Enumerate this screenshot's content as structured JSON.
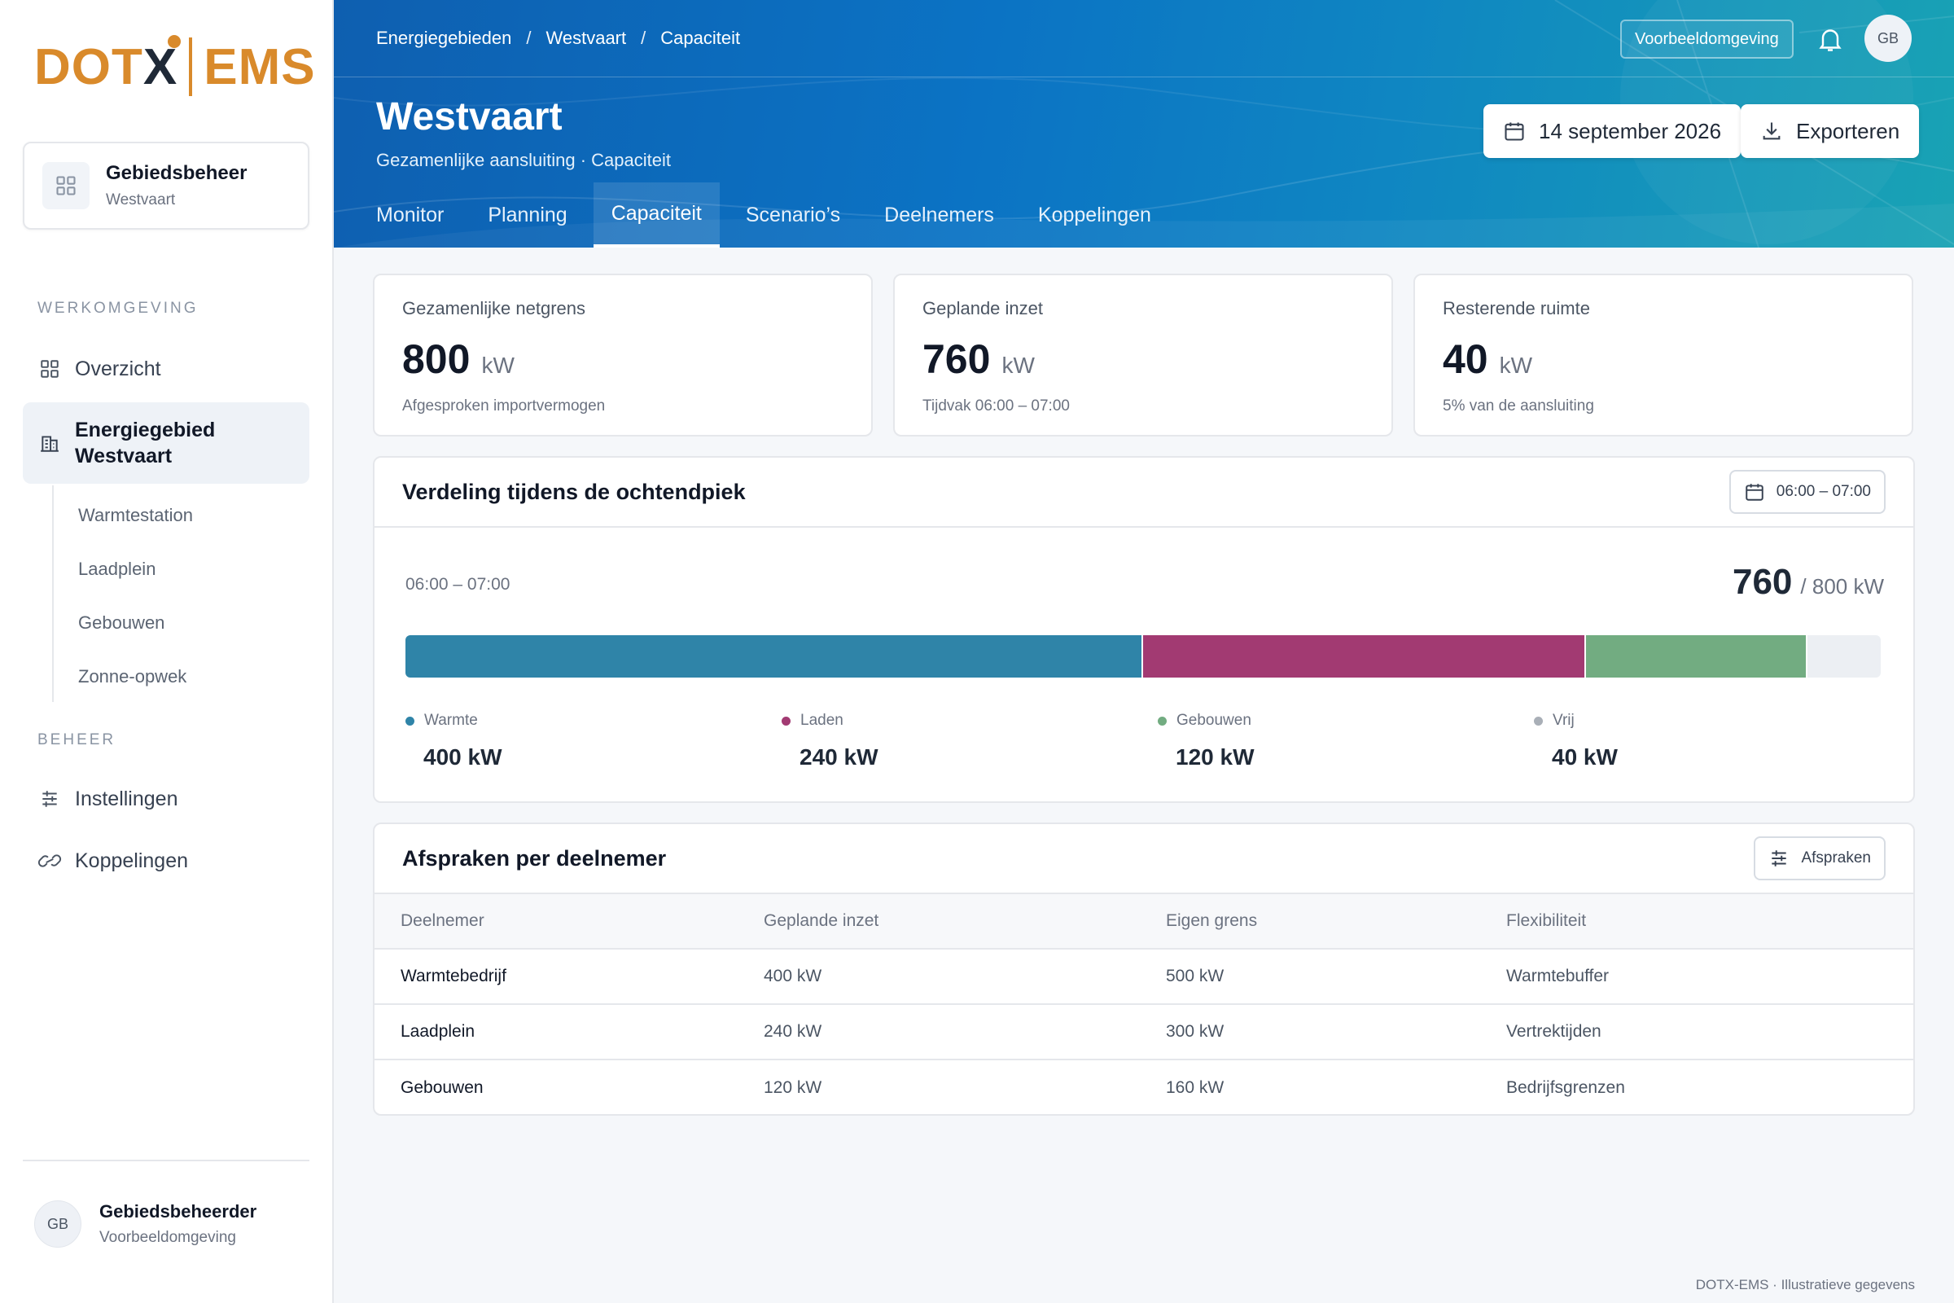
{
  "brand": {
    "left": "DOT",
    "x": "X",
    "right": "EMS"
  },
  "area": {
    "title": "Gebiedsbeheer",
    "subtitle": "Westvaart"
  },
  "sidebar": {
    "section_workspace": "WERKOMGEVING",
    "section_manage": "BEHEER",
    "overview": "Overzicht",
    "active_line1": "Energiegebied",
    "active_line2": "Westvaart",
    "sub_items": [
      "Warmtestation",
      "Laadplein",
      "Gebouwen",
      "Zonne-opwek"
    ],
    "settings": "Instellingen",
    "links": "Koppelingen"
  },
  "user": {
    "initials": "GB",
    "name": "Gebiedsbeheerder",
    "env": "Voorbeeldomgeving"
  },
  "header": {
    "breadcrumbs": [
      "Energiegebieden",
      "Westvaart",
      "Capaciteit"
    ],
    "separator": "/",
    "env_badge": "Voorbeeldomgeving",
    "avatar": "GB",
    "title": "Westvaart",
    "subtitle": "Gezamenlijke aansluiting · Capaciteit",
    "date_button": "14 september 2026",
    "export_button": "Exporteren",
    "tabs": [
      "Monitor",
      "Planning",
      "Capaciteit",
      "Scenario’s",
      "Deelnemers",
      "Koppelingen"
    ],
    "active_tab": "Capaciteit"
  },
  "stats": [
    {
      "label": "Gezamenlijke netgrens",
      "value": "800",
      "unit": "kW",
      "note": "Afgesproken importvermogen"
    },
    {
      "label": "Geplande inzet",
      "value": "760",
      "unit": "kW",
      "note": "Tijdvak 06:00 – 07:00"
    },
    {
      "label": "Resterende ruimte",
      "value": "40",
      "unit": "kW",
      "note": "5% van de aansluiting"
    }
  ],
  "distribution": {
    "title": "Verdeling tijdens de ochtendpiek",
    "range_button": "06:00 – 07:00",
    "range": "06:00 – 07:00",
    "total": "760",
    "total_of": "/ 800 kW",
    "capacity_kw": 800,
    "segments": [
      {
        "label": "Warmte",
        "value_kw": 400,
        "value": "400 kW",
        "color": "#2f84a8"
      },
      {
        "label": "Laden",
        "value_kw": 240,
        "value": "240 kW",
        "color": "#a23a72"
      },
      {
        "label": "Gebouwen",
        "value_kw": 120,
        "value": "120 kW",
        "color": "#72ac81"
      },
      {
        "label": "Vrij",
        "value_kw": 40,
        "value": "40 kW",
        "color": "#a9afb7"
      }
    ]
  },
  "agreements": {
    "title": "Afspraken per deelnemer",
    "button": "Afspraken",
    "columns": [
      "Deelnemer",
      "Geplande inzet",
      "Eigen grens",
      "Flexibiliteit"
    ],
    "rows": [
      [
        "Warmtebedrijf",
        "400 kW",
        "500 kW",
        "Warmtebuffer"
      ],
      [
        "Laadplein",
        "240 kW",
        "300 kW",
        "Vertrektijden"
      ],
      [
        "Gebouwen",
        "120 kW",
        "160 kW",
        "Bedrijfsgrenzen"
      ]
    ]
  },
  "footer": "DOTX-EMS · Illustratieve gegevens"
}
